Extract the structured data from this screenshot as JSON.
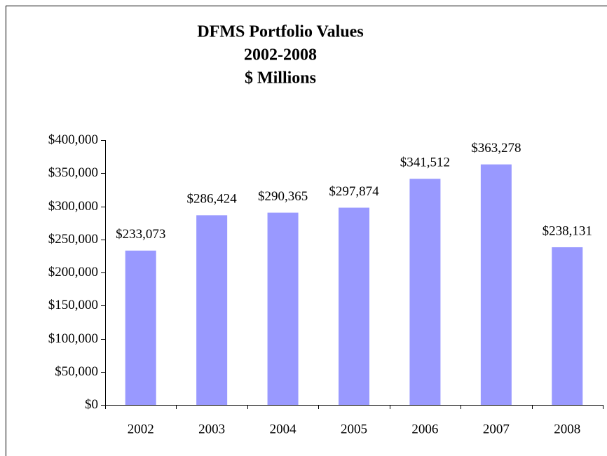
{
  "chart_data": {
    "type": "bar",
    "title": [
      "DFMS Portfolio Values",
      "2002-2008",
      "$ Millions"
    ],
    "categories": [
      "2002",
      "2003",
      "2004",
      "2005",
      "2006",
      "2007",
      "2008"
    ],
    "values": [
      233073,
      286424,
      290365,
      297874,
      341512,
      363278,
      238131
    ],
    "value_labels": [
      "$233,073",
      "$286,424",
      "$290,365",
      "$297,874",
      "$341,512",
      "$363,278",
      "$238,131"
    ],
    "color": "#9999ff",
    "ylim": [
      0,
      400000
    ],
    "yticks": [
      {
        "value": 0,
        "label": "$0"
      },
      {
        "value": 50000,
        "label": "$50,000"
      },
      {
        "value": 100000,
        "label": "$100,000"
      },
      {
        "value": 150000,
        "label": "$150,000"
      },
      {
        "value": 200000,
        "label": "$200,000"
      },
      {
        "value": 250000,
        "label": "$250,000"
      },
      {
        "value": 300000,
        "label": "$300,000"
      },
      {
        "value": 350000,
        "label": "$350,000"
      },
      {
        "value": 400000,
        "label": "$400,000"
      }
    ],
    "grid": false
  }
}
